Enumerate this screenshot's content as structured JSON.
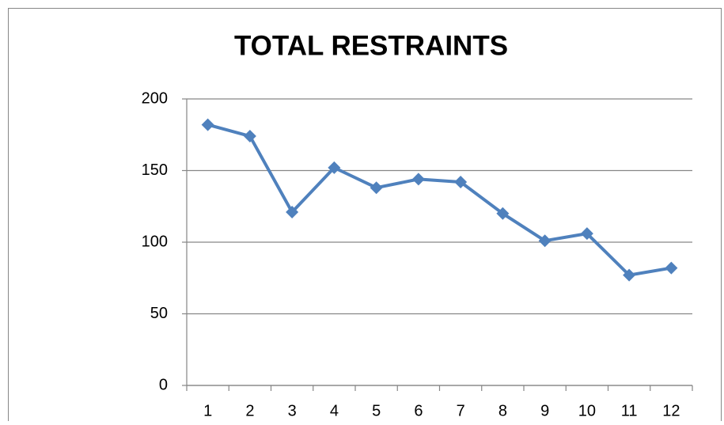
{
  "chart_data": {
    "type": "line",
    "title": "TOTAL RESTRAINTS",
    "categories": [
      "1",
      "2",
      "3",
      "4",
      "5",
      "6",
      "7",
      "8",
      "9",
      "10",
      "11",
      "12"
    ],
    "values": [
      182,
      174,
      121,
      152,
      138,
      144,
      142,
      120,
      101,
      106,
      77,
      82
    ],
    "color": "#4f81bd",
    "ylim": [
      0,
      200
    ],
    "yticks": [
      0,
      50,
      100,
      150,
      200
    ],
    "grid": true
  }
}
